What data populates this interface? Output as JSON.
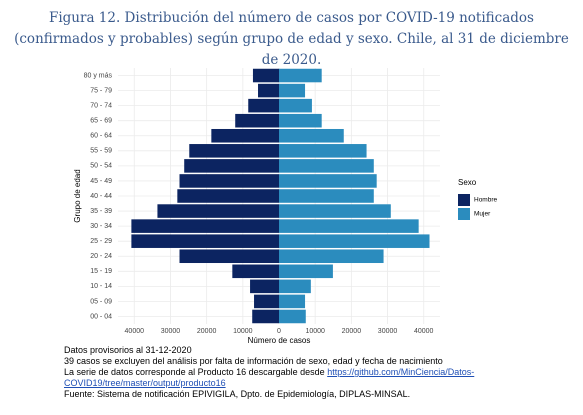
{
  "chart_data": {
    "type": "pyramid",
    "title": "Figura 12. Distribución del número de casos por COVID-19 notificados (confirmados y probables) según grupo de edad y sexo. Chile, al 31 de diciembre de 2020.",
    "x_label": "Número de casos",
    "y_label": "Grupo de edad",
    "legend_title": "Sexo",
    "categories": [
      "00 - 04",
      "05 - 09",
      "10 - 14",
      "15 - 19",
      "20 - 24",
      "25 - 29",
      "30 - 34",
      "35 - 39",
      "40 - 44",
      "45 - 49",
      "50 - 54",
      "55 - 59",
      "60 - 64",
      "65 - 69",
      "70 - 74",
      "75 - 79",
      "80 y más"
    ],
    "series": [
      {
        "name": "Hombre",
        "color": "#0c2461",
        "values": [
          -7400,
          -6900,
          -8000,
          -12900,
          -27500,
          -40800,
          -40800,
          -33600,
          -28100,
          -27500,
          -26200,
          -24800,
          -18700,
          -12100,
          -8500,
          -5800,
          -7200
        ]
      },
      {
        "name": "Mujer",
        "color": "#2b8cbe",
        "values": [
          7400,
          7200,
          8800,
          14900,
          28900,
          41600,
          38600,
          30900,
          26200,
          27000,
          26200,
          24200,
          17900,
          11800,
          9100,
          7200,
          11800
        ]
      }
    ],
    "xlim": [
      -44500,
      44500
    ],
    "xticks": [
      {
        "value": -40000,
        "label": "40000"
      },
      {
        "value": -30000,
        "label": "30000"
      },
      {
        "value": -20000,
        "label": "20000"
      },
      {
        "value": -10000,
        "label": "10000"
      },
      0,
      10000,
      20000,
      30000,
      40000
    ],
    "grid": true,
    "legend_position": "right",
    "notes": [
      "Datos provisorios al 31-12-2020",
      "39 casos se excluyen del análisis por falta de información de sexo, edad y fecha de nacimiento",
      "La serie de datos corresponde al Producto 16 descargable desde "
    ],
    "link": "https://github.com/MinCiencia/Datos-COVID19/tree/master/output/producto16",
    "source": "Fuente: Sistema de notificación EPIVIGILA, Dpto. de Epidemiología, DIPLAS-MINSAL."
  }
}
